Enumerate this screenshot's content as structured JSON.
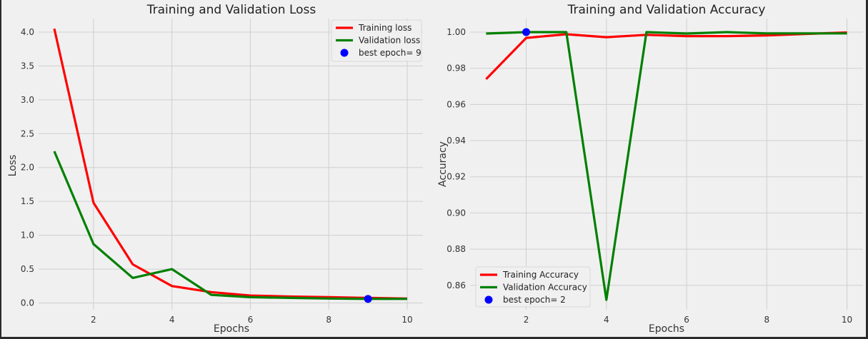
{
  "colors": {
    "figure_bg": "#f0f0f0",
    "plot_bg": "#f0f0f0",
    "grid": "#cfcfcf",
    "training": "#ff0000",
    "validation": "#008000",
    "best_point": "#0000ff"
  },
  "chart_data": [
    {
      "type": "line",
      "title": "Training and Validation Loss",
      "xlabel": "Epochs",
      "ylabel": "Loss",
      "xlim": [
        0.6,
        10.4
      ],
      "ylim": [
        -0.1,
        4.2
      ],
      "xticks": [
        2,
        4,
        6,
        8,
        10
      ],
      "yticks": [
        0.0,
        0.5,
        1.0,
        1.5,
        2.0,
        2.5,
        3.0,
        3.5,
        4.0
      ],
      "ytick_labels": [
        "0.0",
        "0.5",
        "1.0",
        "1.5",
        "2.0",
        "2.5",
        "3.0",
        "3.5",
        "4.0"
      ],
      "grid": true,
      "legend_position": "top-right",
      "x": [
        1,
        2,
        3,
        4,
        5,
        6,
        7,
        8,
        9,
        10
      ],
      "series": [
        {
          "name": "Training loss",
          "color": "training",
          "values": [
            4.05,
            1.48,
            0.57,
            0.25,
            0.16,
            0.11,
            0.095,
            0.085,
            0.075,
            0.065
          ]
        },
        {
          "name": "Validation loss",
          "color": "validation",
          "values": [
            2.24,
            0.87,
            0.37,
            0.5,
            0.12,
            0.085,
            0.075,
            0.065,
            0.06,
            0.06
          ]
        }
      ],
      "best_point": {
        "label": "best epoch= 9",
        "x": 9,
        "y": 0.06
      }
    },
    {
      "type": "line",
      "title": "Training and Validation Accuracy",
      "xlabel": "Epochs",
      "ylabel": "Accuracy",
      "xlim": [
        0.6,
        10.4
      ],
      "ylim": [
        0.8465,
        1.0075
      ],
      "xticks": [
        2,
        4,
        6,
        8,
        10
      ],
      "yticks": [
        0.86,
        0.88,
        0.9,
        0.92,
        0.94,
        0.96,
        0.98,
        1.0
      ],
      "ytick_labels": [
        "0.86",
        "0.88",
        "0.90",
        "0.92",
        "0.94",
        "0.96",
        "0.98",
        "1.00"
      ],
      "grid": true,
      "legend_position": "bottom-left",
      "x": [
        1,
        2,
        3,
        4,
        5,
        6,
        7,
        8,
        9,
        10
      ],
      "series": [
        {
          "name": "Training Accuracy",
          "color": "training",
          "values": [
            0.974,
            0.9968,
            0.9988,
            0.9972,
            0.9985,
            0.9978,
            0.9978,
            0.9982,
            0.999,
            0.9998
          ]
        },
        {
          "name": "Validation Accuracy",
          "color": "validation",
          "values": [
            0.9992,
            1.0,
            1.0,
            0.852,
            1.0,
            0.9992,
            1.0,
            0.9993,
            0.9993,
            0.9993
          ]
        }
      ],
      "best_point": {
        "label": "best epoch= 2",
        "x": 2,
        "y": 1.0
      }
    }
  ]
}
